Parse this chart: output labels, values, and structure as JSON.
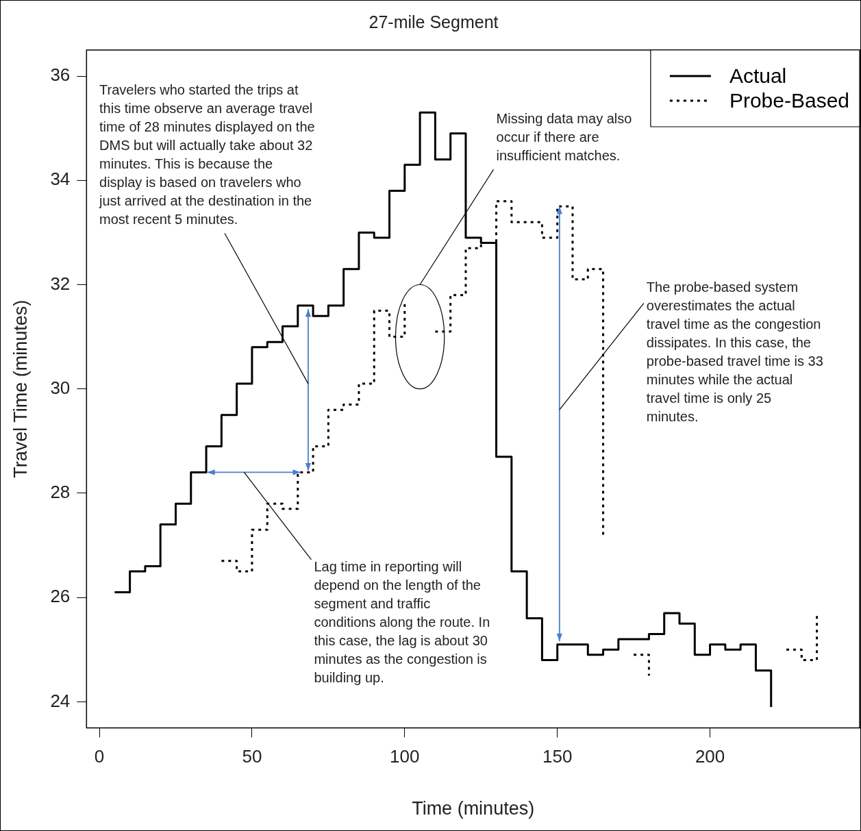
{
  "chart_data": {
    "type": "step",
    "title": "27-mile Segment",
    "xlabel": "Time (minutes)",
    "ylabel": "Travel Time (minutes)",
    "xlim": [
      -4.2,
      249
    ],
    "xticks": [
      0,
      50,
      100,
      150,
      200
    ],
    "ylim": [
      23.5,
      36.5
    ],
    "yticks": [
      24,
      26,
      28,
      30,
      32,
      34,
      36
    ],
    "grid": false,
    "legend": "top right",
    "marker": "none",
    "series": [
      {
        "name": "Actual",
        "color": "#000000",
        "line_style": "solid",
        "x": [
          5,
          10,
          15,
          20,
          25,
          30,
          35,
          40,
          45,
          50,
          55,
          60,
          65,
          70,
          75,
          80,
          85,
          90,
          95,
          100,
          105,
          110,
          115,
          120,
          125,
          130,
          135,
          140,
          145,
          150,
          155,
          160,
          165,
          170,
          175,
          180,
          185,
          190,
          195,
          200,
          205,
          210,
          215,
          220
        ],
        "values": [
          26.1,
          26.5,
          26.6,
          27.4,
          27.8,
          28.4,
          28.9,
          29.5,
          30.1,
          30.8,
          30.9,
          31.2,
          31.6,
          31.4,
          31.6,
          32.3,
          33.0,
          32.9,
          33.8,
          34.3,
          35.3,
          34.4,
          34.9,
          32.9,
          32.8,
          28.7,
          26.5,
          25.6,
          24.8,
          25.1,
          25.1,
          24.9,
          25.0,
          25.2,
          25.2,
          25.3,
          25.7,
          25.5,
          24.9,
          25.1,
          25.0,
          25.1,
          24.6,
          23.9
        ]
      },
      {
        "name": "Probe-Based",
        "color": "#000000",
        "line_style": "dotted",
        "x": [
          40,
          45,
          50,
          55,
          60,
          65,
          70,
          75,
          80,
          85,
          90,
          95,
          100,
          105,
          110,
          115,
          120,
          125,
          130,
          135,
          140,
          145,
          150,
          155,
          160,
          165,
          170,
          175,
          180,
          185,
          190,
          195,
          200,
          205,
          210,
          215,
          220,
          225,
          230,
          235
        ],
        "values": [
          26.7,
          26.5,
          27.3,
          27.8,
          27.7,
          28.4,
          28.9,
          29.6,
          29.7,
          30.1,
          31.5,
          31.0,
          31.7,
          null,
          31.1,
          31.8,
          32.7,
          32.8,
          33.6,
          33.2,
          33.2,
          32.9,
          33.5,
          32.1,
          32.3,
          27.2,
          null,
          24.9,
          24.5,
          null,
          null,
          null,
          null,
          null,
          null,
          null,
          null,
          25.0,
          24.8,
          25.7
        ]
      }
    ],
    "annotations": [
      "Travelers who started the trips at this time observe an average travel time of 28 minutes displayed on the DMS but will actually take about 32 minutes. This is because the display is based on travelers who just arrived at the destination in the most recent 5 minutes.",
      "Lag time in reporting will depend on the length of the segment and traffic conditions along the route. In this case, the lag is about 30 minutes as the congestion is building up.",
      "Missing data may also occur if there are insufficient matches.",
      "The probe-based system overestimates the actual travel time as the congestion dissipates. In this case, the probe-based travel time is 33 minutes while the actual travel time is only 25 minutes."
    ]
  }
}
